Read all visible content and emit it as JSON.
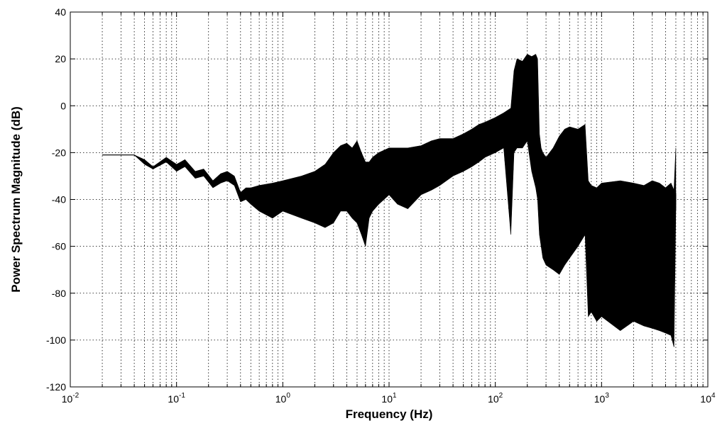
{
  "chart_data": {
    "type": "line",
    "title": "",
    "xlabel": "Frequency (Hz)",
    "ylabel": "Power Spectrum Magnitude (dB)",
    "x_scale": "log",
    "xlim": [
      0.01,
      10000
    ],
    "ylim": [
      -120,
      40
    ],
    "grid": true,
    "x_ticks": [
      {
        "value": 0.01,
        "mantissa": "10",
        "exponent": "-2"
      },
      {
        "value": 0.1,
        "mantissa": "10",
        "exponent": "-1"
      },
      {
        "value": 1,
        "mantissa": "10",
        "exponent": "0"
      },
      {
        "value": 10,
        "mantissa": "10",
        "exponent": "1"
      },
      {
        "value": 100,
        "mantissa": "10",
        "exponent": "2"
      },
      {
        "value": 1000,
        "mantissa": "10",
        "exponent": "3"
      },
      {
        "value": 10000,
        "mantissa": "10",
        "exponent": "4"
      }
    ],
    "y_ticks": [
      "40",
      "20",
      "0",
      "-20",
      "-40",
      "-60",
      "-80",
      "-100",
      "-120"
    ],
    "y_tick_values": [
      40,
      20,
      0,
      -20,
      -40,
      -60,
      -80,
      -100,
      -120
    ],
    "series_color": "#000000",
    "series": [
      {
        "x": [
          0.02,
          0.03,
          0.04,
          0.05,
          0.06,
          0.08,
          0.1,
          0.12,
          0.15,
          0.18,
          0.22,
          0.26,
          0.3,
          0.35,
          0.4,
          0.45,
          0.5,
          0.6,
          0.8,
          1.0,
          1.5,
          2.0,
          2.5,
          3.0,
          3.5,
          4.0,
          4.5,
          5.0,
          5.5,
          6.0,
          6.5,
          7.0,
          8.0,
          10,
          12,
          15,
          20,
          25,
          30,
          40,
          50,
          60,
          70,
          80,
          100,
          120,
          140,
          150,
          160,
          180,
          200,
          220,
          240,
          250,
          260,
          270,
          280,
          300,
          350,
          400,
          450,
          500,
          600,
          700,
          750,
          800,
          900,
          1000,
          1500,
          2000,
          2500,
          3000,
          3500,
          4000,
          4500,
          4800,
          5000
        ],
        "y": [
          -21,
          -21,
          -21,
          -24,
          -27,
          -23,
          -27,
          -24,
          -30,
          -28,
          -34,
          -31,
          -30,
          -32,
          -40,
          -37,
          -37,
          -37,
          -37,
          -38,
          -36,
          -35,
          -33,
          -32,
          -30,
          -27,
          -28,
          -30,
          -32,
          -36,
          -37,
          -33,
          -30,
          -29,
          -28,
          -27,
          -25,
          -24,
          -23,
          -21,
          -20,
          -18,
          -16,
          -14,
          -12,
          -10,
          -8,
          -3,
          0,
          2,
          5,
          3,
          3,
          -4,
          -25,
          -35,
          -36,
          -38,
          -36,
          -36,
          -34,
          -32,
          -30,
          -29,
          -62,
          -60,
          -62,
          -60,
          -60,
          -62,
          -61,
          -60,
          -61,
          -62,
          -62,
          -63,
          -38
        ],
        "envelope_upper": [
          -21,
          -21,
          -21,
          -23,
          -26,
          -22,
          -25,
          -23,
          -28,
          -27,
          -32,
          -29,
          -28,
          -30,
          -37,
          -35,
          -35,
          -34,
          -33,
          -32,
          -30,
          -28,
          -25,
          -20,
          -17,
          -16,
          -18,
          -15,
          -20,
          -24,
          -24,
          -22,
          -20,
          -18,
          -18,
          -18,
          -17,
          -15,
          -14,
          -14,
          -12,
          -10,
          -8,
          -7,
          -5,
          -3,
          -1,
          15,
          20,
          19,
          22,
          21,
          22,
          20,
          -12,
          -18,
          -20,
          -22,
          -18,
          -13,
          -10,
          -9,
          -10,
          -8,
          -32,
          -34,
          -35,
          -33,
          -32,
          -33,
          -34,
          -32,
          -33,
          -35,
          -33,
          -36,
          -18
        ],
        "envelope_lower": [
          -21,
          -21,
          -21,
          -25,
          -27,
          -24,
          -28,
          -26,
          -31,
          -30,
          -35,
          -33,
          -32,
          -34,
          -41,
          -40,
          -42,
          -45,
          -48,
          -45,
          -48,
          -50,
          -52,
          -50,
          -45,
          -45,
          -48,
          -50,
          -55,
          -60,
          -48,
          -45,
          -42,
          -38,
          -42,
          -44,
          -38,
          -36,
          -34,
          -30,
          -28,
          -26,
          -24,
          -22,
          -20,
          -18,
          -55,
          -20,
          -18,
          -18,
          -15,
          -28,
          -35,
          -40,
          -55,
          -60,
          -65,
          -68,
          -70,
          -72,
          -68,
          -65,
          -60,
          -55,
          -90,
          -88,
          -92,
          -90,
          -96,
          -92,
          -94,
          -95,
          -96,
          -97,
          -98,
          -103,
          -45
        ]
      }
    ]
  }
}
